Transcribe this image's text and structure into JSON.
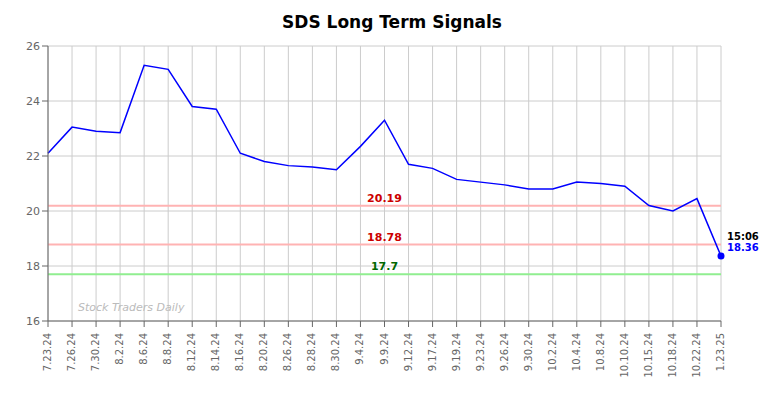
{
  "chart_data": {
    "type": "line",
    "title": "SDS Long Term Signals",
    "categories": [
      "7.23.24",
      "7.26.24",
      "7.30.24",
      "8.2.24",
      "8.6.24",
      "8.8.24",
      "8.12.24",
      "8.14.24",
      "8.16.24",
      "8.20.24",
      "8.26.24",
      "8.28.24",
      "8.30.24",
      "9.4.24",
      "9.9.24",
      "9.12.24",
      "9.17.24",
      "9.19.24",
      "9.23.24",
      "9.26.24",
      "9.30.24",
      "10.2.24",
      "10.4.24",
      "10.8.24",
      "10.10.24",
      "10.15.24",
      "10.18.24",
      "10.22.24",
      "1.23.25"
    ],
    "values": [
      22.1,
      23.05,
      22.9,
      22.85,
      25.3,
      25.15,
      23.8,
      23.7,
      22.1,
      21.8,
      21.65,
      21.6,
      21.5,
      22.35,
      23.3,
      21.7,
      21.55,
      21.15,
      21.05,
      20.95,
      20.8,
      20.8,
      21.05,
      21.0,
      20.9,
      20.2,
      20.0,
      20.45,
      18.36
    ],
    "color": "blue",
    "ylim": [
      16,
      26
    ],
    "yticks": [
      16,
      18,
      20,
      22,
      24,
      26
    ],
    "grid": true,
    "hlines": [
      {
        "value": 20.19,
        "color": "#ffb3b3",
        "label_color": "#cc0000"
      },
      {
        "value": 18.78,
        "color": "#ffb3b3",
        "label_color": "#cc0000"
      },
      {
        "value": 17.7,
        "color": "#90ee90",
        "label_color": "#006600"
      }
    ],
    "annotations": [
      {
        "text": "15:06",
        "color": "black",
        "x": "1.23.25",
        "y": 18.36
      },
      {
        "text": "18.36",
        "color": "blue",
        "x": "1.23.25",
        "y": 18.36
      },
      {
        "text": "Stock Traders Daily",
        "color": "#bbbbbb"
      }
    ]
  }
}
